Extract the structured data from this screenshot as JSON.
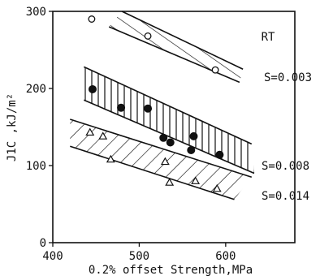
{
  "chart_data": {
    "type": "scatter",
    "title": "",
    "xlabel": "0.2% offset Strength,MPa",
    "ylabel": "J1C ,kJ/m²",
    "xlim": [
      400,
      680
    ],
    "ylim": [
      0,
      300
    ],
    "xticks": [
      400,
      500,
      600
    ],
    "yticks": [
      0,
      100,
      200,
      300
    ],
    "grid": false,
    "annotations": [
      "RT",
      "S=0.003",
      "S=0.008",
      "S=0.014"
    ],
    "series": [
      {
        "name": "S=0.003",
        "marker": "open-circle",
        "band_hatch": "diagonal-forward",
        "band_upper": [
          [
            480,
            300
          ],
          [
            620,
            225
          ]
        ],
        "band_lower": [
          [
            465,
            280
          ],
          [
            616,
            208
          ]
        ],
        "points": [
          [
            445,
            290
          ],
          [
            510,
            268
          ],
          [
            588,
            224
          ]
        ]
      },
      {
        "name": "S=0.008",
        "marker": "filled-circle",
        "band_hatch": "vertical",
        "band_upper": [
          [
            436,
            228
          ],
          [
            630,
            128
          ]
        ],
        "band_lower": [
          [
            436,
            185
          ],
          [
            633,
            90
          ]
        ],
        "points": [
          [
            446,
            199
          ],
          [
            479,
            175
          ],
          [
            510,
            174
          ],
          [
            528,
            136
          ],
          [
            536,
            130
          ],
          [
            560,
            120
          ],
          [
            563,
            138
          ],
          [
            593,
            114
          ]
        ]
      },
      {
        "name": "S=0.014",
        "marker": "open-triangle",
        "band_hatch": "diagonal-back",
        "band_upper": [
          [
            420,
            160
          ],
          [
            630,
            85
          ]
        ],
        "band_lower": [
          [
            420,
            125
          ],
          [
            610,
            56
          ]
        ],
        "points": [
          [
            443,
            143
          ],
          [
            458,
            138
          ],
          [
            467,
            108
          ],
          [
            530,
            105
          ],
          [
            535,
            78
          ],
          [
            565,
            80
          ],
          [
            590,
            70
          ]
        ]
      }
    ]
  }
}
